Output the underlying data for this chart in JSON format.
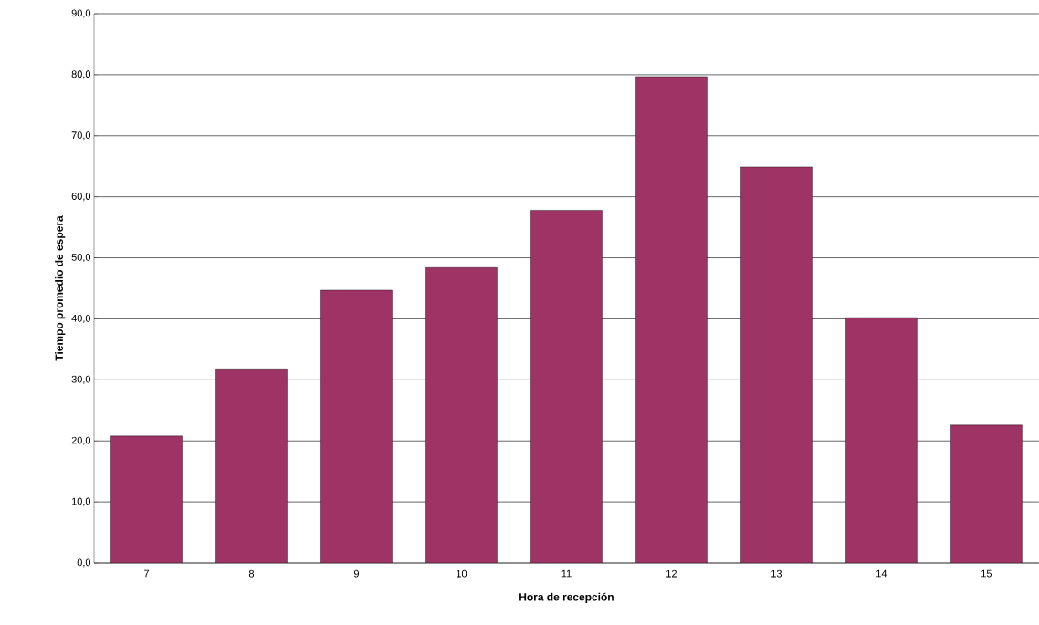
{
  "chart_data": {
    "type": "bar",
    "xlabel": "Hora de recepción",
    "ylabel": "Tiempo promedio de espera",
    "categories": [
      "7",
      "8",
      "9",
      "10",
      "11",
      "12",
      "13",
      "14",
      "15"
    ],
    "values": [
      20.8,
      31.8,
      44.7,
      48.4,
      57.8,
      79.7,
      64.9,
      40.2,
      22.6
    ],
    "color": "#9e3466",
    "ylim": [
      0,
      90
    ],
    "yticks": [
      {
        "value": 0,
        "label": "0,0"
      },
      {
        "value": 10,
        "label": "10,0"
      },
      {
        "value": 20,
        "label": "20,0"
      },
      {
        "value": 30,
        "label": "30,0"
      },
      {
        "value": 40,
        "label": "40,0"
      },
      {
        "value": 50,
        "label": "50,0"
      },
      {
        "value": 60,
        "label": "60,0"
      },
      {
        "value": 70,
        "label": "70,0"
      },
      {
        "value": 80,
        "label": "80,0"
      },
      {
        "value": 90,
        "label": "90,0"
      }
    ],
    "grid": "y"
  }
}
